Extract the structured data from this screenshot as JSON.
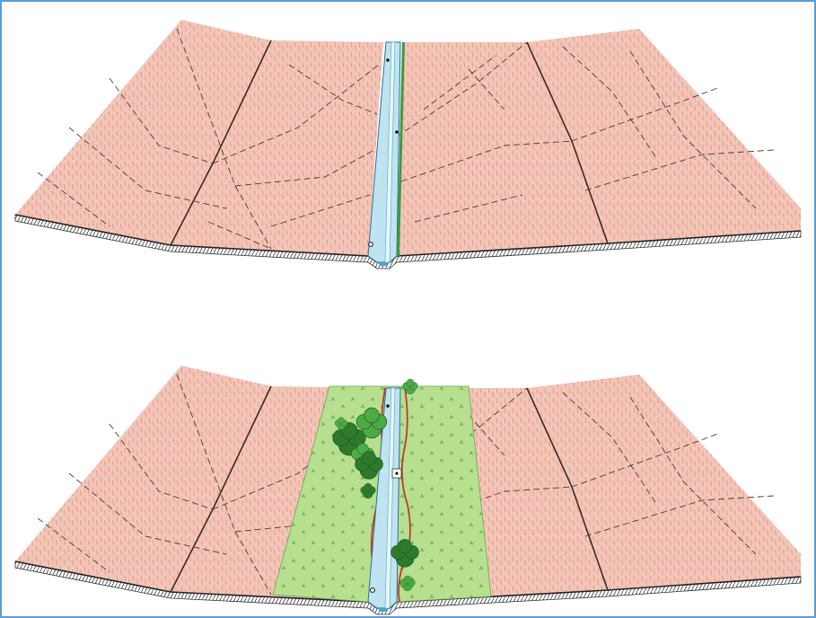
{
  "figure": {
    "panels": [
      {
        "id": "before",
        "riparian_buffer": false,
        "trees": 0
      },
      {
        "id": "after",
        "riparian_buffer": true,
        "trees": 9
      }
    ],
    "colors": {
      "border": "#5b9bd5",
      "slope_fill": "#f2c4be",
      "hatch": "#e8a25c",
      "ridge_line": "#3a2a24",
      "water_fill": "#bfe3f0",
      "water_edge": "#4aa6cf",
      "buffer_fill": "#b6df8f",
      "buffer_edge": "#c0392b",
      "tree_dark": "#2d7a2d",
      "tree_light": "#4cab45",
      "green_bank": "#3d9a3d"
    }
  }
}
